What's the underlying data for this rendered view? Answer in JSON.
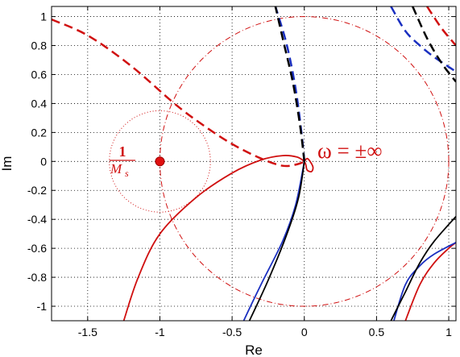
{
  "chart_data": {
    "type": "line",
    "title": "",
    "xlabel": "Re",
    "ylabel": "Im",
    "xlim": [
      -1.75,
      1.05
    ],
    "ylim": [
      -1.1,
      1.07
    ],
    "xticks": [
      -1.5,
      -1,
      -0.5,
      0,
      0.5,
      1
    ],
    "xtick_labels": [
      "-1.5",
      "-1",
      "-0.5",
      "0",
      "0.5",
      "1"
    ],
    "yticks": [
      -1,
      -0.8,
      -0.6,
      -0.4,
      -0.2,
      0,
      0.2,
      0.4,
      0.6,
      0.8,
      1
    ],
    "ytick_labels": [
      "-1",
      "-0.8",
      "-0.6",
      "-0.4",
      "-0.2",
      "0",
      "0.2",
      "0.4",
      "0.6",
      "0.8",
      "1"
    ],
    "grid": true,
    "grid_style": "dotted",
    "colors": {
      "red": "#d01010",
      "blue": "#1a2fc0",
      "black": "#000000"
    },
    "series": [
      {
        "color": "red",
        "dash": "solid",
        "points": [
          [
            -1.25,
            -1.1
          ],
          [
            -1.15,
            -0.8
          ],
          [
            -1.0,
            -0.5
          ],
          [
            -0.75,
            -0.25
          ],
          [
            -0.5,
            -0.08
          ],
          [
            -0.3,
            0.01
          ],
          [
            -0.15,
            0.04
          ],
          [
            -0.05,
            0.03
          ],
          [
            0.0,
            0.0
          ]
        ]
      },
      {
        "color": "red",
        "dash": "solid",
        "points": [
          [
            0.0,
            0.0
          ],
          [
            0.02,
            0.02
          ],
          [
            0.04,
            0.0
          ],
          [
            0.06,
            -0.04
          ],
          [
            0.05,
            -0.07
          ],
          [
            0.02,
            -0.06
          ],
          [
            0.01,
            -0.02
          ],
          [
            0.0,
            0.0
          ]
        ]
      },
      {
        "color": "red",
        "dash": "solid",
        "points": [
          [
            0.7,
            -1.1
          ],
          [
            0.8,
            -0.85
          ],
          [
            0.9,
            -0.7
          ],
          [
            1.0,
            -0.6
          ],
          [
            1.05,
            -0.56
          ]
        ]
      },
      {
        "color": "red",
        "dash": "dashed",
        "points": [
          [
            -1.75,
            0.98
          ],
          [
            -1.5,
            0.87
          ],
          [
            -1.2,
            0.66
          ],
          [
            -0.9,
            0.4
          ],
          [
            -0.7,
            0.25
          ],
          [
            -0.5,
            0.12
          ],
          [
            -0.3,
            0.02
          ],
          [
            -0.15,
            -0.03
          ],
          [
            -0.05,
            -0.02
          ],
          [
            0.0,
            0.0
          ]
        ]
      },
      {
        "color": "red",
        "dash": "dashed",
        "points": [
          [
            0.85,
            1.07
          ],
          [
            0.95,
            0.92
          ],
          [
            1.05,
            0.8
          ]
        ]
      },
      {
        "color": "blue",
        "dash": "solid",
        "points": [
          [
            -0.42,
            -1.1
          ],
          [
            -0.3,
            -0.85
          ],
          [
            -0.15,
            -0.55
          ],
          [
            -0.06,
            -0.3
          ],
          [
            0.0,
            0.0
          ]
        ]
      },
      {
        "color": "blue",
        "dash": "solid",
        "points": [
          [
            0.62,
            -1.1
          ],
          [
            0.7,
            -0.85
          ],
          [
            0.8,
            -0.72
          ],
          [
            0.9,
            -0.64
          ],
          [
            1.05,
            -0.56
          ]
        ]
      },
      {
        "color": "blue",
        "dash": "dashed",
        "points": [
          [
            0.0,
            0.0
          ],
          [
            -0.02,
            0.2
          ],
          [
            -0.06,
            0.5
          ],
          [
            -0.12,
            0.8
          ],
          [
            -0.2,
            1.07
          ]
        ]
      },
      {
        "color": "blue",
        "dash": "dashed",
        "points": [
          [
            0.6,
            1.07
          ],
          [
            0.7,
            0.9
          ],
          [
            0.8,
            0.8
          ],
          [
            0.9,
            0.72
          ],
          [
            1.05,
            0.62
          ]
        ]
      },
      {
        "color": "black",
        "dash": "solid",
        "points": [
          [
            -0.38,
            -1.1
          ],
          [
            -0.25,
            -0.82
          ],
          [
            -0.12,
            -0.5
          ],
          [
            -0.04,
            -0.25
          ],
          [
            0.0,
            0.0
          ]
        ]
      },
      {
        "color": "black",
        "dash": "solid",
        "points": [
          [
            0.6,
            -1.1
          ],
          [
            0.7,
            -0.9
          ],
          [
            0.8,
            -0.7
          ],
          [
            0.9,
            -0.55
          ],
          [
            1.05,
            -0.38
          ]
        ]
      },
      {
        "color": "black",
        "dash": "dashed",
        "points": [
          [
            0.0,
            0.0
          ],
          [
            -0.03,
            0.25
          ],
          [
            -0.08,
            0.55
          ],
          [
            -0.15,
            0.85
          ],
          [
            -0.2,
            1.07
          ]
        ]
      },
      {
        "color": "black",
        "dash": "dashed",
        "points": [
          [
            0.75,
            1.07
          ],
          [
            0.85,
            0.85
          ],
          [
            0.95,
            0.68
          ],
          [
            1.05,
            0.55
          ]
        ]
      }
    ],
    "circles": [
      {
        "cx": 0,
        "cy": 0,
        "r": 1,
        "style": "dash-dot",
        "color": "red"
      },
      {
        "cx": -1,
        "cy": 0,
        "r": 0.35,
        "style": "dotted",
        "color": "red"
      }
    ],
    "point": {
      "x": -1,
      "y": 0,
      "color": "red"
    },
    "annotations": {
      "ms_numerator": "1",
      "ms_denominator": "M",
      "ms_subscript": "s",
      "omega_label": "ω = ±∞"
    }
  }
}
